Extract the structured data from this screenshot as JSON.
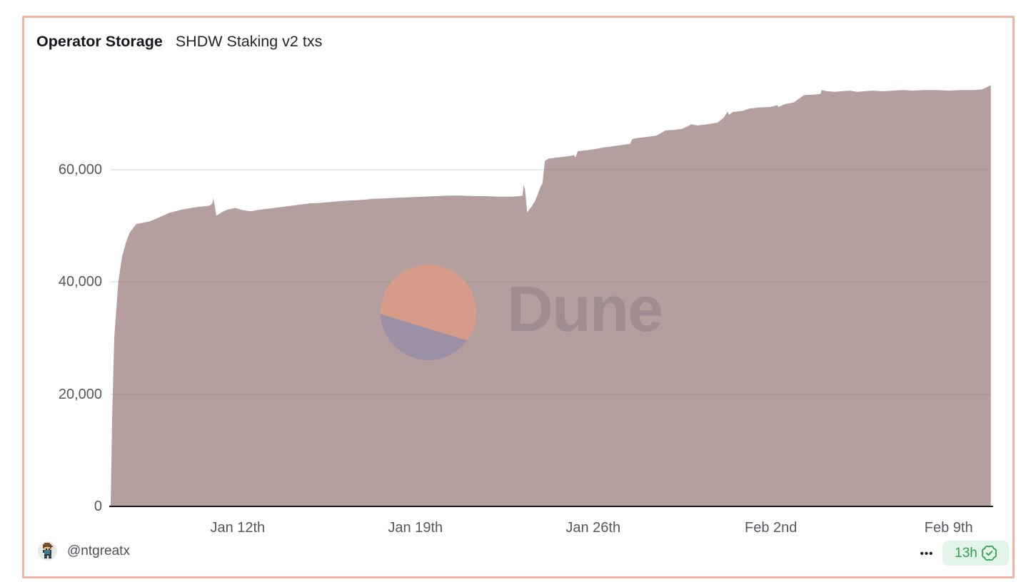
{
  "card": {
    "title": "Operator Storage",
    "subtitle": "SHDW Staking v2 txs",
    "border_color": "#f0b4a2",
    "background": "#ffffff"
  },
  "watermark": {
    "text": "Dune",
    "circle_top_color": "#d89c88",
    "circle_bottom_color": "#9b8fa7",
    "text_color": "#9f8d92"
  },
  "footer": {
    "author": "@ntgreatx",
    "menu_label": "•••",
    "badge": {
      "age": "13h",
      "background": "#e3f4e9",
      "color": "#2f9e4e",
      "icon": "verified-seal-icon"
    }
  },
  "chart_data": {
    "type": "area",
    "title": "Operator Storage",
    "subtitle": "SHDW Staking v2 txs",
    "fill_color": "rgba(151,120,120,0.72)",
    "grid_color": "#e4e3e7",
    "axis_color": "#17171b",
    "label_color": "#55575c",
    "grid": true,
    "x_axis": {
      "start_date": "Jan 7th",
      "end_date": "Feb 10th",
      "ticks": [
        {
          "label": "Jan 12th",
          "day": 5
        },
        {
          "label": "Jan 19th",
          "day": 12
        },
        {
          "label": "Jan 26th",
          "day": 19
        },
        {
          "label": "Feb 2nd",
          "day": 26
        },
        {
          "label": "Feb 9th",
          "day": 33
        }
      ]
    },
    "y_axis": {
      "max_value": 77200,
      "ticks": [
        {
          "label": "0",
          "value": 0
        },
        {
          "label": "20,000",
          "value": 20000
        },
        {
          "label": "40,000",
          "value": 40000
        },
        {
          "label": "60,000",
          "value": 60000
        }
      ]
    },
    "series": [
      {
        "name": "SHDW Staking v2 txs",
        "points": [
          [
            0,
            0
          ],
          [
            0.06,
            16000
          ],
          [
            0.14,
            30000
          ],
          [
            0.3,
            40000
          ],
          [
            0.45,
            44500
          ],
          [
            0.6,
            47000
          ],
          [
            0.75,
            48800
          ],
          [
            1.0,
            50300
          ],
          [
            1.55,
            50800
          ],
          [
            2.3,
            52300
          ],
          [
            2.8,
            52900
          ],
          [
            3.3,
            53300
          ],
          [
            3.9,
            53600
          ],
          [
            4.0,
            54000
          ],
          [
            4.04,
            54900
          ],
          [
            4.1,
            53500
          ],
          [
            4.16,
            51800
          ],
          [
            4.4,
            52500
          ],
          [
            4.6,
            52900
          ],
          [
            4.9,
            53200
          ],
          [
            5.2,
            52800
          ],
          [
            5.5,
            52600
          ],
          [
            5.9,
            52900
          ],
          [
            6.3,
            53100
          ],
          [
            6.8,
            53400
          ],
          [
            7.3,
            53700
          ],
          [
            7.8,
            54000
          ],
          [
            8.3,
            54100
          ],
          [
            8.8,
            54300
          ],
          [
            9.3,
            54500
          ],
          [
            9.8,
            54600
          ],
          [
            10.3,
            54800
          ],
          [
            10.8,
            54900
          ],
          [
            11.3,
            55000
          ],
          [
            11.8,
            55100
          ],
          [
            12.3,
            55200
          ],
          [
            12.8,
            55300
          ],
          [
            13.3,
            55400
          ],
          [
            13.8,
            55400
          ],
          [
            14.3,
            55300
          ],
          [
            14.8,
            55300
          ],
          [
            15.3,
            55200
          ],
          [
            15.8,
            55200
          ],
          [
            16.1,
            55300
          ],
          [
            16.22,
            55400
          ],
          [
            16.26,
            57300
          ],
          [
            16.32,
            56500
          ],
          [
            16.4,
            52400
          ],
          [
            16.55,
            53300
          ],
          [
            16.7,
            54300
          ],
          [
            16.85,
            56000
          ],
          [
            16.95,
            57200
          ],
          [
            17.0,
            57500
          ],
          [
            17.04,
            59000
          ],
          [
            17.1,
            61600
          ],
          [
            17.25,
            62000
          ],
          [
            17.6,
            62200
          ],
          [
            18.0,
            62400
          ],
          [
            18.25,
            62600
          ],
          [
            18.3,
            62200
          ],
          [
            18.4,
            63300
          ],
          [
            18.8,
            63500
          ],
          [
            19.2,
            63800
          ],
          [
            19.45,
            64000
          ],
          [
            19.8,
            64200
          ],
          [
            20.1,
            64400
          ],
          [
            20.45,
            64600
          ],
          [
            20.55,
            65500
          ],
          [
            20.8,
            65700
          ],
          [
            21.2,
            65900
          ],
          [
            21.5,
            66100
          ],
          [
            21.85,
            67000
          ],
          [
            22.2,
            67100
          ],
          [
            22.5,
            67300
          ],
          [
            22.75,
            67800
          ],
          [
            22.85,
            68100
          ],
          [
            23.1,
            67900
          ],
          [
            23.5,
            68100
          ],
          [
            23.9,
            68400
          ],
          [
            24.15,
            69300
          ],
          [
            24.3,
            70400
          ],
          [
            24.35,
            69800
          ],
          [
            24.5,
            70300
          ],
          [
            24.9,
            70500
          ],
          [
            25.15,
            70900
          ],
          [
            25.5,
            71100
          ],
          [
            26.0,
            71200
          ],
          [
            26.25,
            71500
          ],
          [
            26.3,
            71200
          ],
          [
            26.55,
            71700
          ],
          [
            26.9,
            72000
          ],
          [
            27.3,
            73300
          ],
          [
            27.7,
            73400
          ],
          [
            27.95,
            73500
          ],
          [
            28.0,
            74200
          ],
          [
            28.2,
            74000
          ],
          [
            28.5,
            73900
          ],
          [
            28.8,
            74000
          ],
          [
            29.1,
            74100
          ],
          [
            29.4,
            73900
          ],
          [
            29.7,
            74000
          ],
          [
            30.0,
            74100
          ],
          [
            30.4,
            74000
          ],
          [
            30.8,
            74100
          ],
          [
            31.2,
            74200
          ],
          [
            31.6,
            74100
          ],
          [
            32.0,
            74200
          ],
          [
            32.5,
            74200
          ],
          [
            33.0,
            74100
          ],
          [
            33.5,
            74200
          ],
          [
            34.0,
            74200
          ],
          [
            34.3,
            74300
          ],
          [
            34.5,
            74700
          ],
          [
            34.66,
            75100
          ]
        ]
      }
    ]
  }
}
